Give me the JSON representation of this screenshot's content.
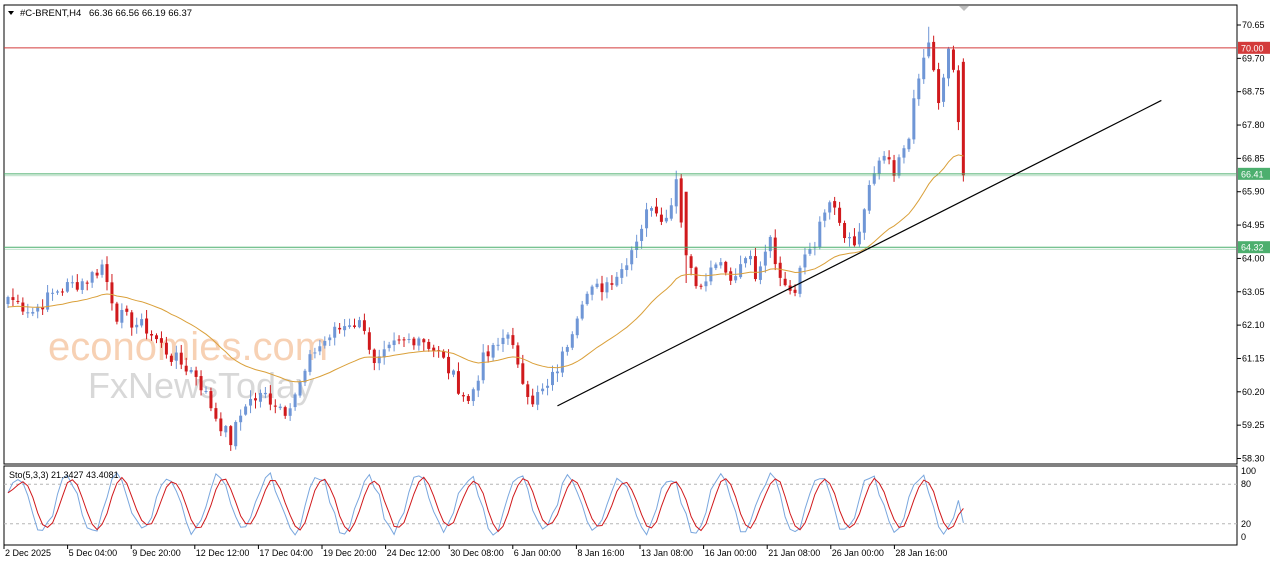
{
  "header": {
    "symbol": "#C-BRENT,H4",
    "ohlc": "66.36 66.56 66.19 66.37"
  },
  "watermark": {
    "line1": "economies.com",
    "line2": "FxNewsToday"
  },
  "colors": {
    "bull": "#6f96d6",
    "bear": "#d0191c",
    "ma": "#daa03a",
    "resistance": "#d33b3b",
    "support": "#4caf6e",
    "trendline": "#000000",
    "stoch_main": "#7aa7de",
    "stoch_signal": "#d0191c"
  },
  "chart_data": [
    {
      "type": "candlestick",
      "symbol": "#C-BRENT",
      "timeframe": "H4",
      "ylim": [
        58.3,
        71.0
      ],
      "y_ticks": [
        "70.65",
        "69.70",
        "68.75",
        "67.80",
        "66.85",
        "65.90",
        "64.95",
        "64.00",
        "63.05",
        "62.10",
        "61.15",
        "60.20",
        "59.25",
        "58.30"
      ],
      "x_ticks": [
        "2 Dec 2025",
        "5 Dec 04:00",
        "9 Dec 20:00",
        "12 Dec 12:00",
        "17 Dec 04:00",
        "19 Dec 20:00",
        "24 Dec 12:00",
        "30 Dec 08:00",
        "6 Jan 00:00",
        "8 Jan 16:00",
        "13 Jan 08:00",
        "16 Jan 00:00",
        "21 Jan 08:00",
        "26 Jan 00:00",
        "28 Jan 16:00"
      ],
      "anchors": [
        [
          0,
          62.9
        ],
        [
          5,
          62.5
        ],
        [
          10,
          63.1
        ],
        [
          16,
          63.4
        ],
        [
          19,
          63.8
        ],
        [
          22,
          62.4
        ],
        [
          28,
          62.0
        ],
        [
          33,
          61.2
        ],
        [
          38,
          60.7
        ],
        [
          42,
          59.5
        ],
        [
          45,
          58.8
        ],
        [
          48,
          59.9
        ],
        [
          52,
          60.1
        ],
        [
          56,
          59.7
        ],
        [
          59,
          60.4
        ],
        [
          62,
          61.4
        ],
        [
          66,
          61.9
        ],
        [
          69,
          62.2
        ],
        [
          72,
          62.1
        ],
        [
          74,
          60.9
        ],
        [
          78,
          61.5
        ],
        [
          83,
          61.8
        ],
        [
          87,
          61.3
        ],
        [
          90,
          60.6
        ],
        [
          93,
          59.9
        ],
        [
          96,
          61.1
        ],
        [
          99,
          61.5
        ],
        [
          101,
          62.0
        ],
        [
          103,
          60.8
        ],
        [
          106,
          60.0
        ],
        [
          109,
          60.3
        ],
        [
          112,
          61.2
        ],
        [
          116,
          62.9
        ],
        [
          120,
          63.2
        ],
        [
          124,
          63.7
        ],
        [
          127,
          64.6
        ],
        [
          130,
          65.6
        ],
        [
          133,
          65.1
        ],
        [
          135,
          66.3
        ],
        [
          137,
          64.1
        ],
        [
          140,
          63.1
        ],
        [
          143,
          63.9
        ],
        [
          146,
          63.3
        ],
        [
          149,
          64.2
        ],
        [
          151,
          63.6
        ],
        [
          154,
          64.7
        ],
        [
          156,
          63.4
        ],
        [
          159,
          63.0
        ],
        [
          161,
          64.1
        ],
        [
          163,
          64.5
        ],
        [
          166,
          65.6
        ],
        [
          169,
          64.6
        ],
        [
          171,
          64.2
        ],
        [
          174,
          66.0
        ],
        [
          177,
          66.9
        ],
        [
          179,
          66.3
        ],
        [
          182,
          67.6
        ],
        [
          184,
          69.1
        ],
        [
          186,
          70.2
        ],
        [
          188,
          68.3
        ],
        [
          190,
          70.0
        ],
        [
          191,
          69.2
        ],
        [
          193,
          66.37
        ]
      ],
      "last_price": 66.37,
      "levels": [
        {
          "value": 70.0,
          "label": "70.00",
          "kind": "resistance"
        },
        {
          "value": 66.41,
          "label": "66.41",
          "kind": "support"
        },
        {
          "value": 64.32,
          "label": "64.32",
          "kind": "support"
        }
      ],
      "trendline": [
        [
          111,
          59.8
        ],
        [
          233,
          68.5
        ]
      ],
      "moving_average": "orange"
    },
    {
      "type": "line",
      "indicator": "Sto(5,3,3)",
      "label": "Sto(5,3,3) 21.3427 43.4081",
      "main_value": 21.3427,
      "signal_value": 43.4081,
      "ylim": [
        0,
        100
      ],
      "y_ticks": [
        "100",
        "80",
        "20",
        "0"
      ],
      "levels": [
        80,
        20
      ]
    }
  ]
}
